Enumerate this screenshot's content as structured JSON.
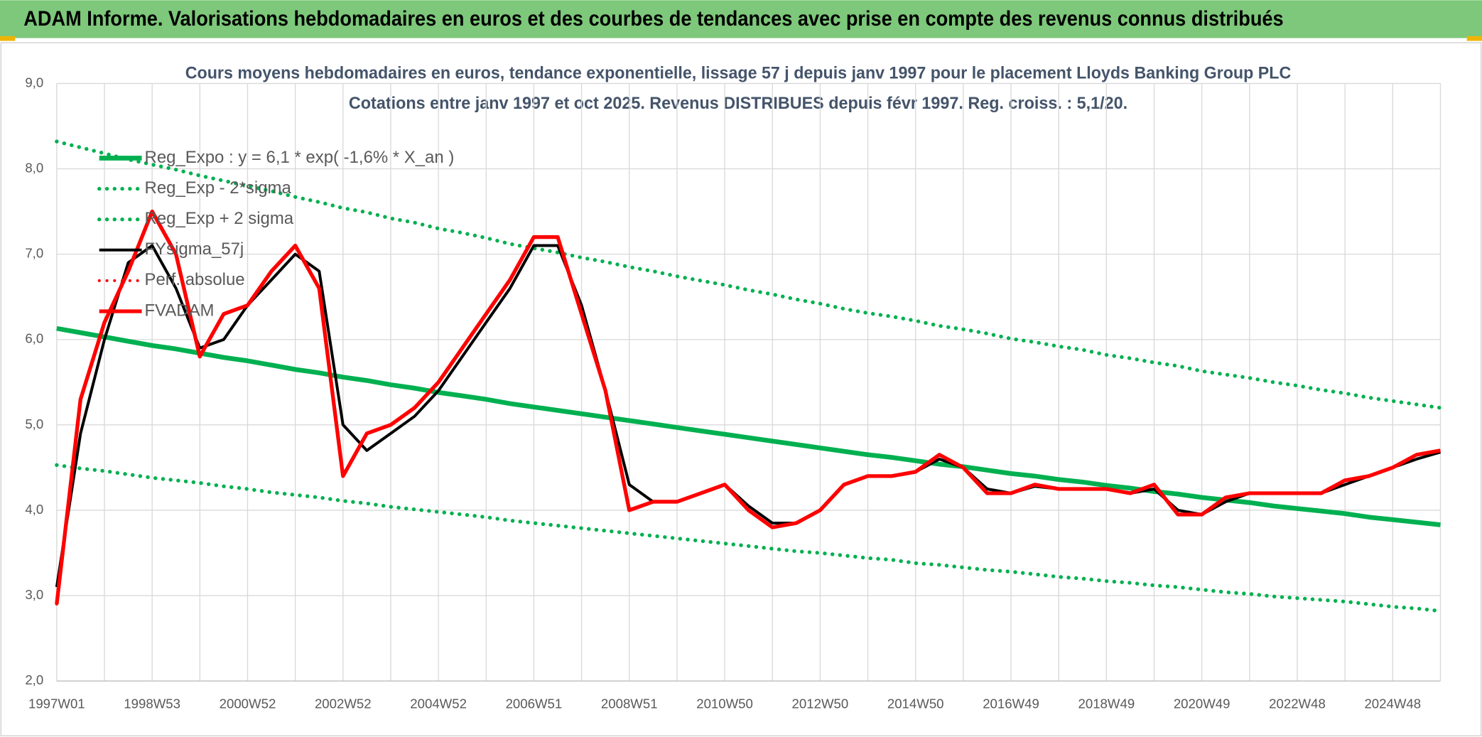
{
  "header": {
    "title": "ADAM Informe. Valorisations hebdomadaires en euros et des courbes de tendances avec prise en compte des revenus connus distribués"
  },
  "chart_data": {
    "type": "line",
    "title": "Cours moyens hebdomadaires en euros, tendance exponentielle, lissage 57 j depuis janv 1997 pour le placement Lloyds Banking Group PLC",
    "subtitle": "Cotations entre janv 1997 et oct 2025. Revenus DISTRIBUES depuis févr 1997. Reg. croiss. : 5,1/20.",
    "categories": [
      "1997W01",
      null,
      null,
      null,
      "1998W53",
      null,
      null,
      null,
      "2000W52",
      null,
      null,
      null,
      "2002W52",
      null,
      null,
      null,
      "2004W52",
      null,
      null,
      null,
      "2006W51",
      null,
      null,
      null,
      "2008W51",
      null,
      null,
      null,
      "2010W50",
      null,
      null,
      null,
      "2012W50",
      null,
      null,
      null,
      "2014W50",
      null,
      null,
      null,
      "2016W49",
      null,
      null,
      null,
      "2018W49",
      null,
      null,
      null,
      "2020W49",
      null,
      null,
      null,
      "2022W48",
      null,
      null,
      null,
      "2024W48",
      null,
      null
    ],
    "ylim": [
      2,
      9
    ],
    "yticks": [
      {
        "value": 2,
        "label": "2,0"
      },
      {
        "value": 3,
        "label": "3,0"
      },
      {
        "value": 4,
        "label": "4,0"
      },
      {
        "value": 5,
        "label": "5,0"
      },
      {
        "value": 6,
        "label": "6,0"
      },
      {
        "value": 7,
        "label": "7,0"
      },
      {
        "value": 8,
        "label": "8,0"
      },
      {
        "value": 9,
        "label": "9,0"
      }
    ],
    "grid": true,
    "legend": "upper left",
    "series": [
      {
        "name": "Reg_Expo : y = 6,1 * exp( -1,6% *  X_an )",
        "color": "#00b050",
        "style": "solid",
        "values": [
          6.13,
          6.08,
          6.03,
          5.98,
          5.93,
          5.89,
          5.84,
          5.79,
          5.75,
          5.7,
          5.65,
          5.61,
          5.56,
          5.52,
          5.47,
          5.43,
          5.38,
          5.34,
          5.3,
          5.25,
          5.21,
          5.17,
          5.13,
          5.09,
          5.05,
          5.01,
          4.97,
          4.93,
          4.89,
          4.85,
          4.81,
          4.77,
          4.73,
          4.69,
          4.65,
          4.62,
          4.58,
          4.54,
          4.51,
          4.47,
          4.43,
          4.4,
          4.36,
          4.33,
          4.29,
          4.26,
          4.22,
          4.19,
          4.15,
          4.12,
          4.09,
          4.05,
          4.02,
          3.99,
          3.96,
          3.92,
          3.89,
          3.86,
          3.83
        ]
      },
      {
        "name": "Reg_Exp - 2*sigma",
        "color": "#00b050",
        "style": "dotted",
        "values": [
          4.53,
          4.49,
          4.46,
          4.42,
          4.38,
          4.35,
          4.32,
          4.28,
          4.25,
          4.21,
          4.18,
          4.15,
          4.11,
          4.08,
          4.04,
          4.01,
          3.98,
          3.95,
          3.92,
          3.88,
          3.85,
          3.82,
          3.79,
          3.76,
          3.73,
          3.7,
          3.67,
          3.64,
          3.61,
          3.58,
          3.55,
          3.52,
          3.5,
          3.47,
          3.44,
          3.42,
          3.38,
          3.36,
          3.33,
          3.3,
          3.28,
          3.25,
          3.22,
          3.2,
          3.17,
          3.15,
          3.12,
          3.1,
          3.07,
          3.04,
          3.02,
          2.99,
          2.97,
          2.95,
          2.93,
          2.9,
          2.87,
          2.85,
          2.82
        ]
      },
      {
        "name": "Reg_Exp + 2 sigma",
        "color": "#00b050",
        "style": "dotted",
        "values": [
          8.32,
          8.25,
          8.18,
          8.11,
          8.05,
          7.99,
          7.92,
          7.86,
          7.8,
          7.74,
          7.67,
          7.61,
          7.54,
          7.49,
          7.42,
          7.37,
          7.3,
          7.25,
          7.19,
          7.12,
          7.07,
          7.02,
          6.96,
          6.91,
          6.85,
          6.8,
          6.74,
          6.69,
          6.64,
          6.58,
          6.53,
          6.47,
          6.42,
          6.36,
          6.31,
          6.27,
          6.22,
          6.16,
          6.12,
          6.07,
          6.01,
          5.97,
          5.92,
          5.88,
          5.82,
          5.78,
          5.73,
          5.69,
          5.63,
          5.59,
          5.55,
          5.5,
          5.46,
          5.41,
          5.37,
          5.32,
          5.28,
          5.24,
          5.2
        ]
      },
      {
        "name": "FYsigma_57j",
        "color": "#000000",
        "style": "solid",
        "values": [
          3.1,
          4.9,
          6.0,
          6.9,
          7.1,
          6.6,
          5.9,
          6.0,
          6.4,
          6.7,
          7.0,
          6.8,
          5.0,
          4.7,
          4.9,
          5.1,
          5.4,
          5.8,
          6.2,
          6.6,
          7.1,
          7.1,
          6.4,
          5.4,
          4.3,
          4.1,
          4.1,
          4.2,
          4.3,
          4.05,
          3.85,
          3.85,
          4.0,
          4.3,
          4.4,
          4.4,
          4.45,
          4.6,
          4.5,
          4.25,
          4.2,
          4.28,
          4.25,
          4.25,
          4.25,
          4.2,
          4.25,
          4.0,
          3.95,
          4.1,
          4.2,
          4.2,
          4.2,
          4.2,
          4.3,
          4.4,
          4.5,
          4.6,
          4.68
        ]
      },
      {
        "name": "Perf. absolue",
        "color": "#ff0000",
        "style": "dotted",
        "values": [
          2.9,
          5.3,
          6.2,
          6.8,
          7.5,
          7.0,
          5.8,
          6.3,
          6.4,
          6.8,
          7.1,
          6.6,
          4.4,
          4.9,
          5.0,
          5.2,
          5.5,
          5.9,
          6.3,
          6.7,
          7.2,
          7.2,
          6.3,
          5.4,
          4.0,
          4.1,
          4.1,
          4.2,
          4.3,
          4.0,
          3.8,
          3.85,
          4.0,
          4.3,
          4.4,
          4.4,
          4.45,
          4.65,
          4.5,
          4.2,
          4.2,
          4.3,
          4.25,
          4.25,
          4.25,
          4.2,
          4.3,
          3.95,
          3.95,
          4.15,
          4.2,
          4.2,
          4.2,
          4.2,
          4.35,
          4.4,
          4.5,
          4.65,
          4.7
        ]
      },
      {
        "name": "FVADAM",
        "color": "#ff0000",
        "style": "solid",
        "values": [
          2.9,
          5.3,
          6.2,
          6.8,
          7.5,
          7.0,
          5.8,
          6.3,
          6.4,
          6.8,
          7.1,
          6.6,
          4.4,
          4.9,
          5.0,
          5.2,
          5.5,
          5.9,
          6.3,
          6.7,
          7.2,
          7.2,
          6.3,
          5.4,
          4.0,
          4.1,
          4.1,
          4.2,
          4.3,
          4.0,
          3.8,
          3.85,
          4.0,
          4.3,
          4.4,
          4.4,
          4.45,
          4.65,
          4.5,
          4.2,
          4.2,
          4.3,
          4.25,
          4.25,
          4.25,
          4.2,
          4.3,
          3.95,
          3.95,
          4.15,
          4.2,
          4.2,
          4.2,
          4.2,
          4.35,
          4.4,
          4.5,
          4.65,
          4.7
        ]
      }
    ]
  }
}
